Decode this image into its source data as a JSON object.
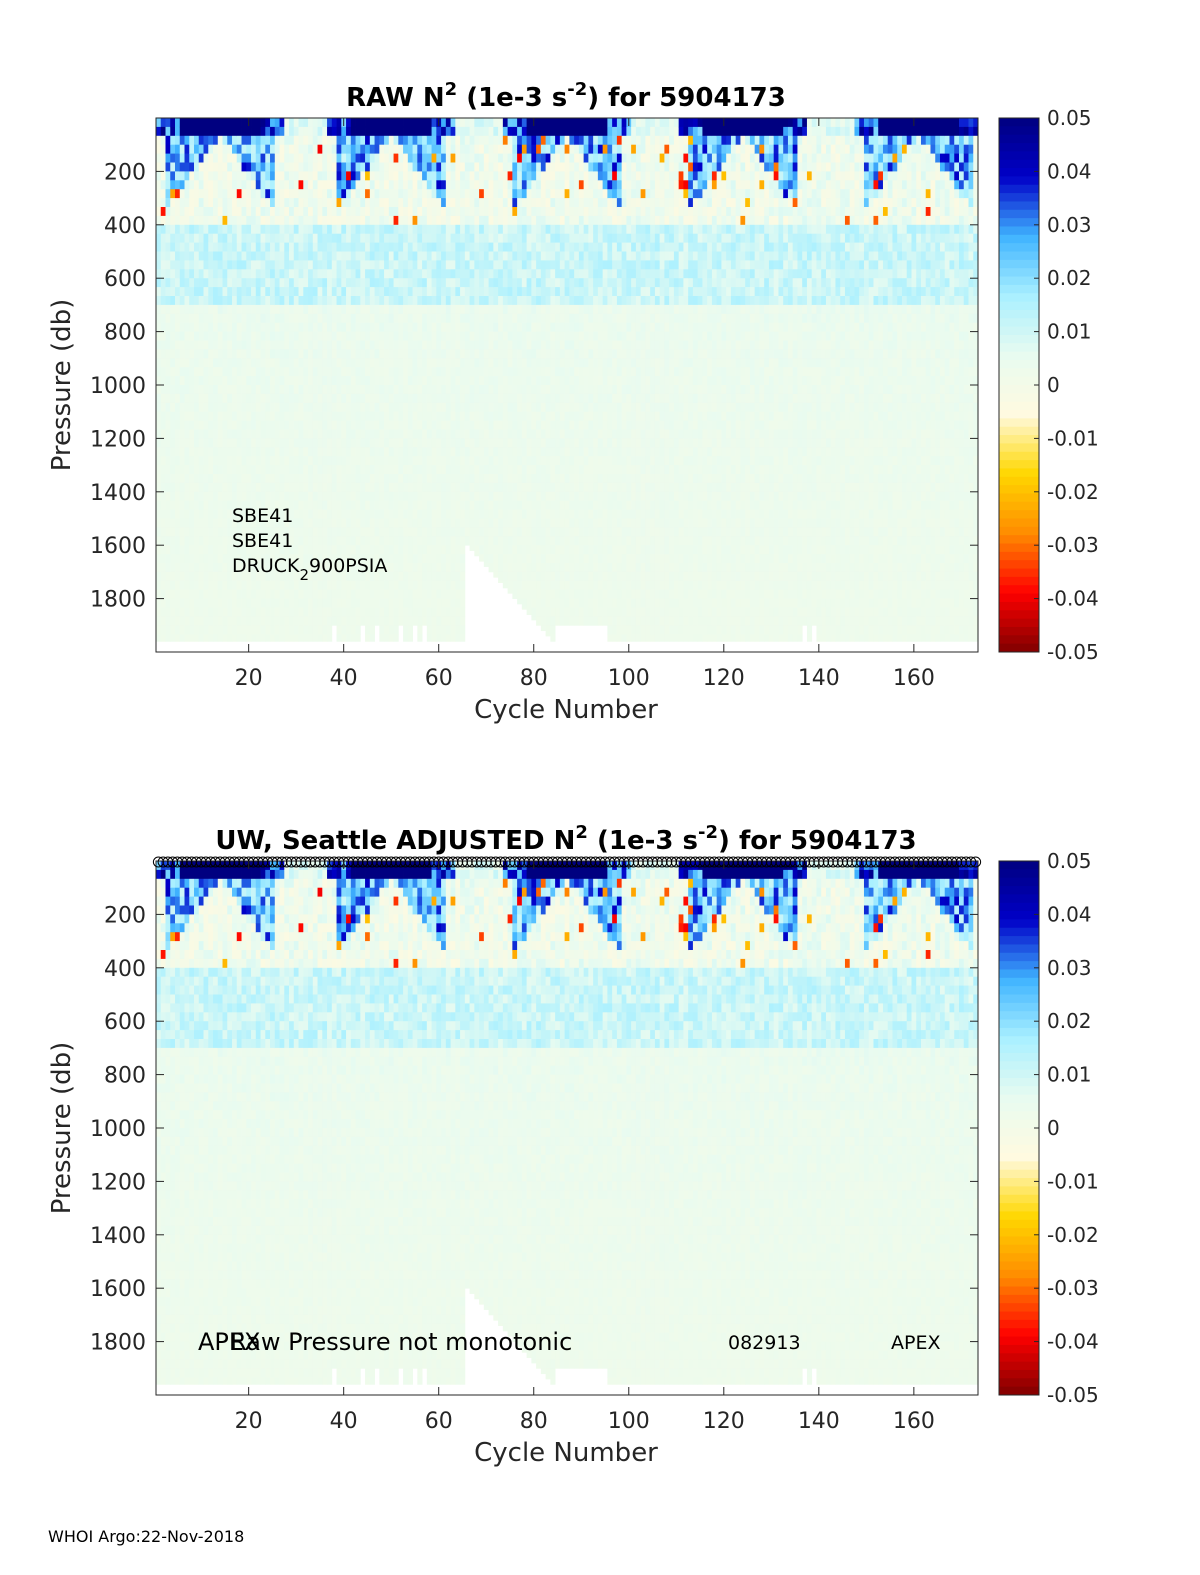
{
  "colors": {
    "colormap": [
      "#800000",
      "#ff0000",
      "#ff8c00",
      "#ffd700",
      "#fffae0",
      "#e8fbf0",
      "#aaf0ff",
      "#40b4ff",
      "#0000c8",
      "#000080"
    ],
    "missing": "#ffffff",
    "axis": "#262626"
  },
  "chart_data": [
    {
      "type": "heatmap",
      "title": {
        "pre": "RAW N",
        "sup1": "2",
        "mid": " (1e-3 s",
        "sup2": "-2",
        "post": ") for 5904173"
      },
      "xlabel": "Cycle Number",
      "ylabel": "Pressure (db)",
      "xlim": [
        1,
        173
      ],
      "ylim": [
        0,
        2000
      ],
      "y_reversed": true,
      "x_ticks": [
        "20",
        "40",
        "60",
        "80",
        "100",
        "120",
        "140",
        "160"
      ],
      "y_ticks": [
        "200",
        "400",
        "600",
        "800",
        "1000",
        "1200",
        "1400",
        "1600",
        "1800"
      ],
      "clim": [
        -0.05,
        0.05
      ],
      "colorbar_ticks": [
        "0.05",
        "0.04",
        "0.03",
        "0.02",
        "0.01",
        "0",
        "-0.01",
        "-0.02",
        "-0.03",
        "-0.04",
        "-0.05"
      ],
      "annotations": {
        "sensor1": "SBE41",
        "sensor2": "SBE41",
        "pressure_pre": "DRUCK",
        "pressure_sub": "2",
        "pressure_post": "900PSIA"
      },
      "shallow_profile_cycles": {
        "first": 66,
        "last": 84,
        "start_depth_db": 1600,
        "end_depth_db": 1960
      },
      "gap_cycles": [
        38,
        44,
        47,
        52,
        55,
        57,
        85,
        86,
        87,
        88,
        89,
        90,
        91,
        92,
        93,
        94,
        95,
        137,
        139
      ],
      "typical_max_depth_db": 1960,
      "surface_maxima_cycles": [
        14,
        50,
        87,
        124,
        161
      ],
      "notes": "N² values mostly 0 to 0.015 below 500 db; strong positive (>0.05) near surface in seasonal stratification pulses; negative values scattered 100-400 db"
    },
    {
      "type": "heatmap",
      "title": {
        "pre": "UW, Seattle  ADJUSTED N",
        "sup1": "2",
        "mid": " (1e-3 s",
        "sup2": "-2",
        "post": ") for 5904173"
      },
      "xlabel": "Cycle Number",
      "ylabel": "Pressure (db)",
      "xlim": [
        1,
        173
      ],
      "ylim": [
        0,
        2000
      ],
      "y_reversed": true,
      "x_ticks": [
        "20",
        "40",
        "60",
        "80",
        "100",
        "120",
        "140",
        "160"
      ],
      "y_ticks": [
        "200",
        "400",
        "600",
        "800",
        "1000",
        "1200",
        "1400",
        "1600",
        "1800"
      ],
      "clim": [
        -0.05,
        0.05
      ],
      "colorbar_ticks": [
        "0.05",
        "0.04",
        "0.03",
        "0.02",
        "0.01",
        "0",
        "-0.01",
        "-0.02",
        "-0.03",
        "-0.04",
        "-0.05"
      ],
      "top_markers": "open circles at every cycle along top edge",
      "annotations": {
        "left": "APEX",
        "warning": "Raw Pressure not monotonic",
        "date_code": "082913",
        "right": "APEX"
      },
      "shallow_profile_cycles": {
        "first": 66,
        "last": 84,
        "start_depth_db": 1600,
        "end_depth_db": 1960
      },
      "gap_cycles": [
        38,
        44,
        47,
        52,
        55,
        57,
        85,
        86,
        87,
        88,
        89,
        90,
        91,
        92,
        93,
        94,
        95,
        137,
        139
      ],
      "typical_max_depth_db": 1960
    }
  ],
  "footer": "WHOI Argo:22-Nov-2018"
}
